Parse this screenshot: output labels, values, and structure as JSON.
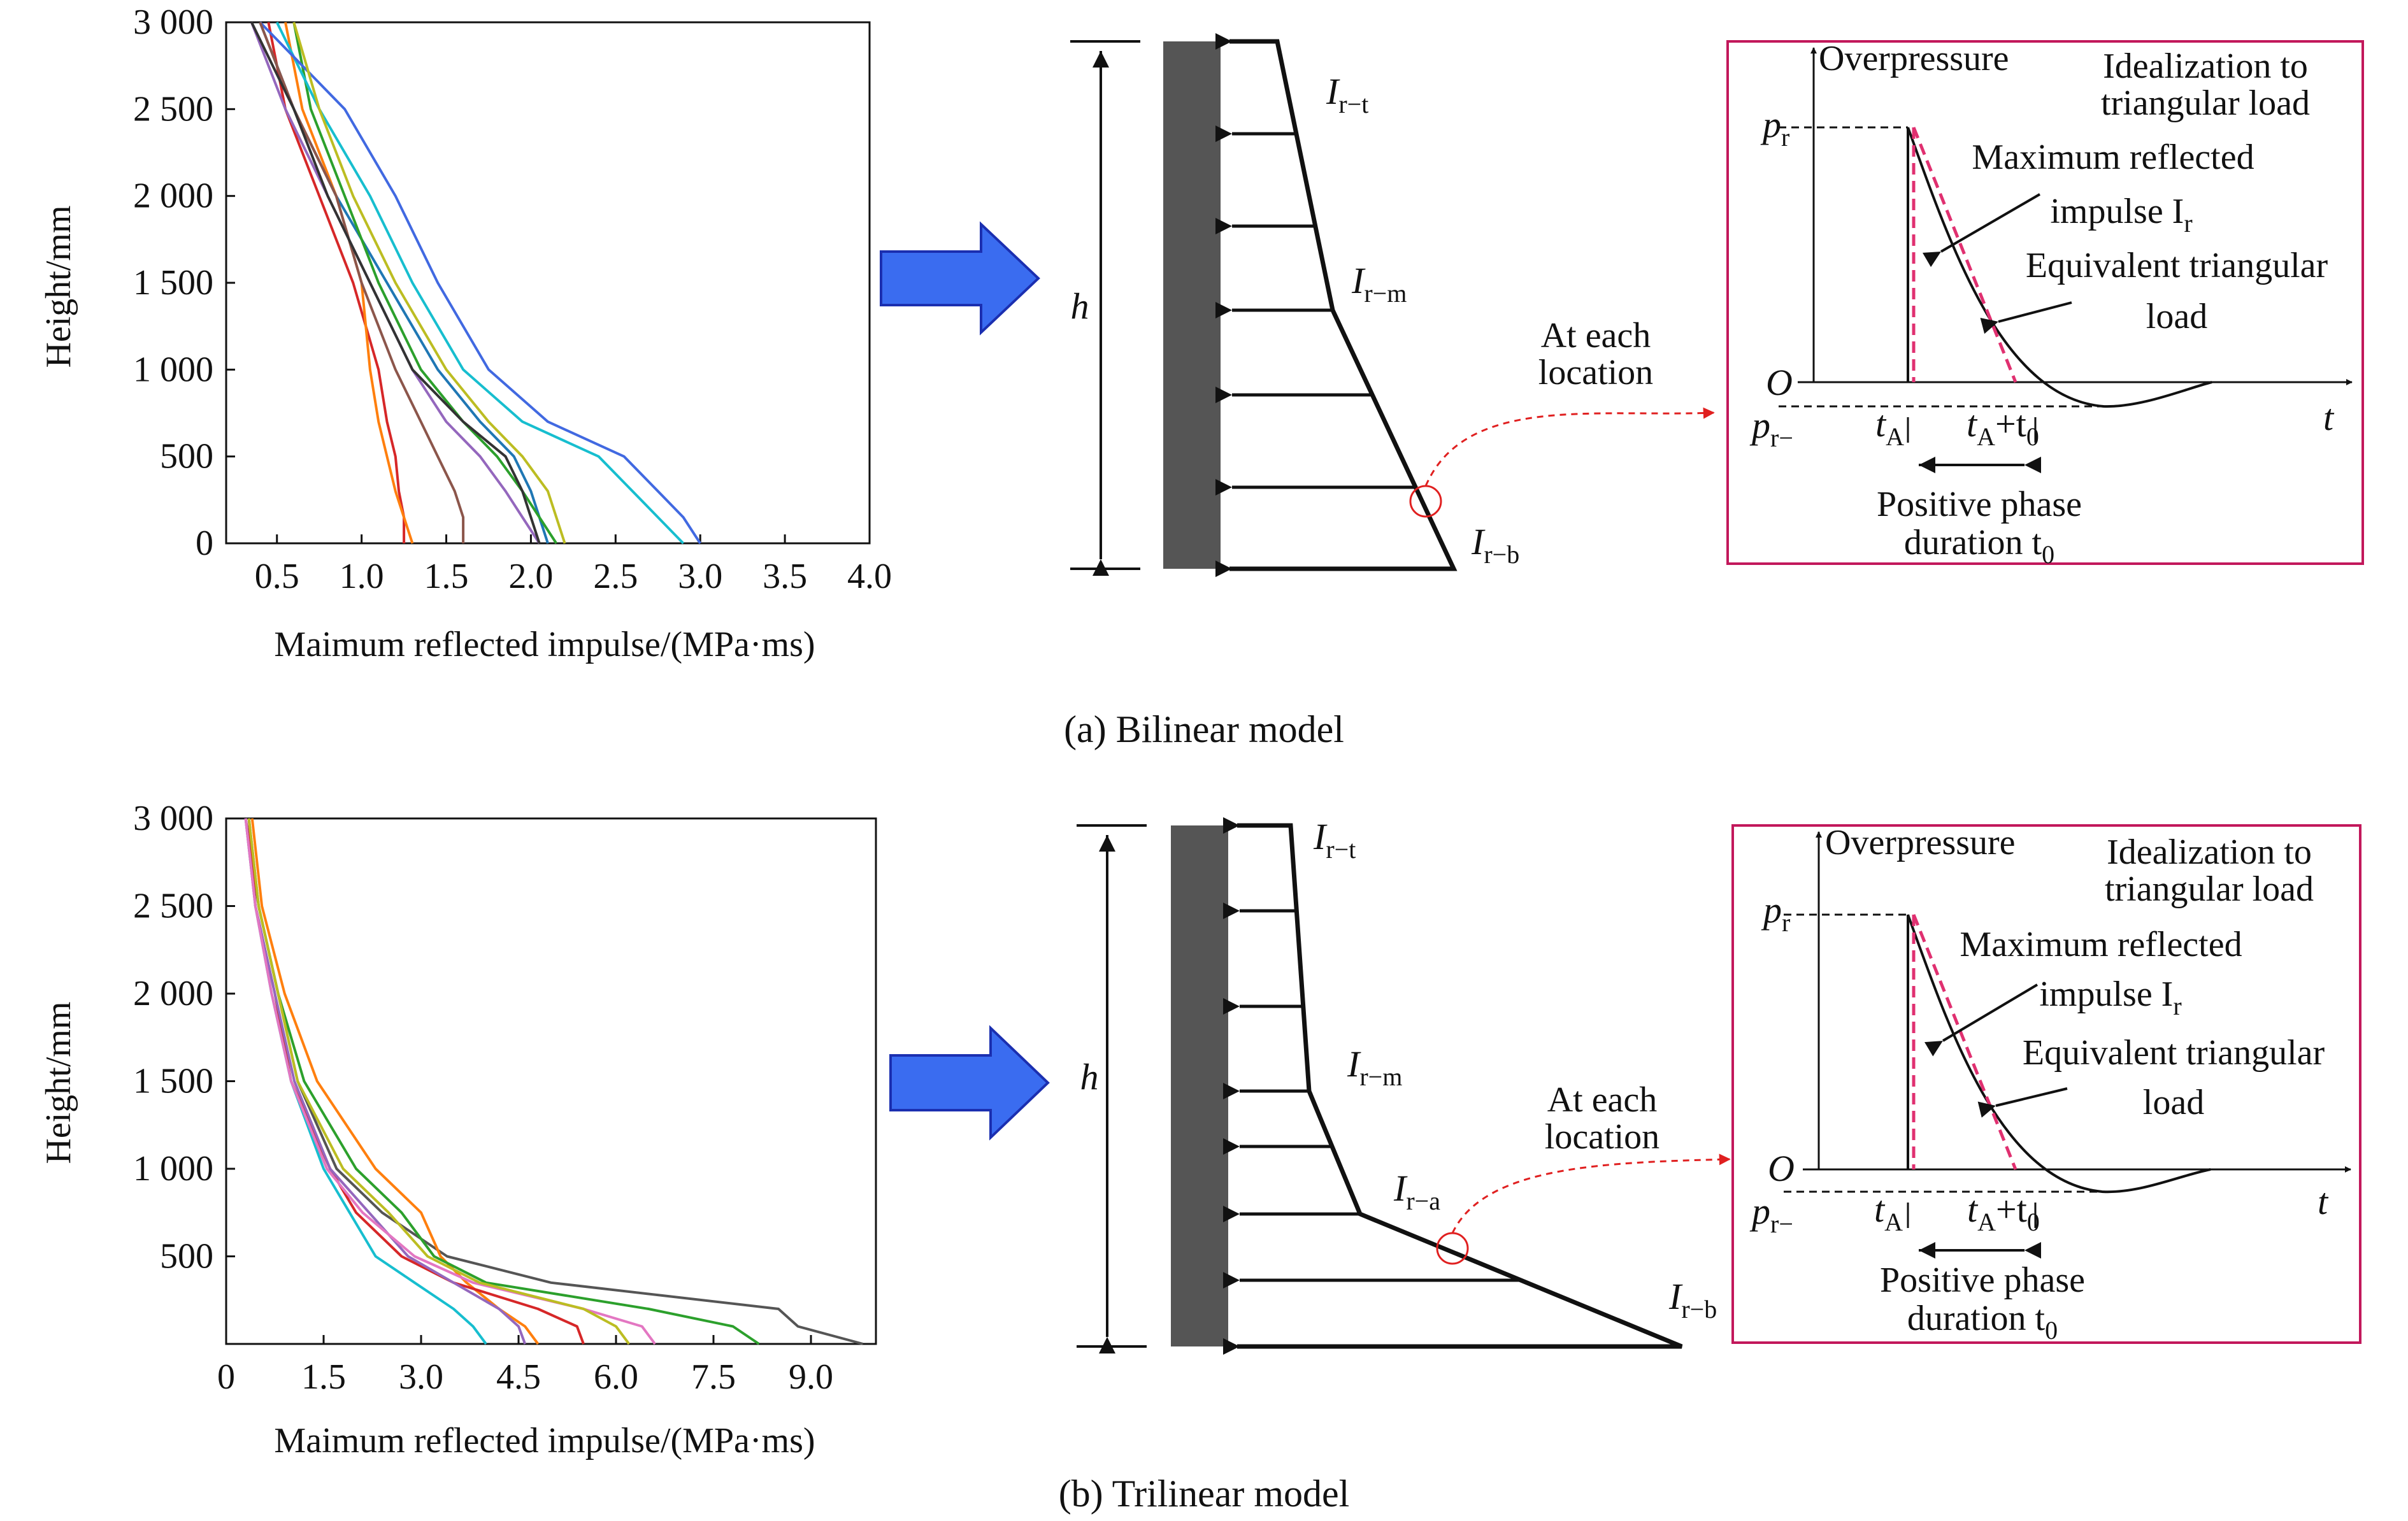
{
  "captions": {
    "a": "(a) Bilinear model",
    "b": "(b) Trilinear model"
  },
  "colors": {
    "arrow_fill": "#3a6cf0",
    "arrow_stroke": "#1b2fb0",
    "wall": "#555555",
    "frame": "#c2185b",
    "equiv_dash": "#e03070",
    "connector": "#e02020"
  },
  "charts": {
    "a": {
      "ylabel": "Height/mm",
      "xlabel": "Maimum reflected impulse/(MPa·ms)",
      "yticks": [
        "3 000",
        "2 500",
        "2 000",
        "1 500",
        "1 000",
        "500",
        "0"
      ],
      "xticks": [
        "0.5",
        "1.0",
        "1.5",
        "2.0",
        "2.5",
        "3.0",
        "3.5",
        "4.0"
      ]
    },
    "b": {
      "ylabel": "Height/mm",
      "xlabel": "Maimum reflected impulse/(MPa·ms)",
      "yticks": [
        "3 000",
        "2 500",
        "2 000",
        "1 500",
        "1 000",
        "500"
      ],
      "xticks": [
        "0",
        "1.5",
        "3.0",
        "4.5",
        "6.0",
        "7.5",
        "9.0"
      ]
    }
  },
  "chart_data": [
    {
      "type": "line",
      "title": "",
      "xlabel": "Maimum reflected impulse/(MPa·ms)",
      "ylabel": "Height/mm",
      "xlim": [
        0.2,
        4.0
      ],
      "ylim": [
        0,
        3000
      ],
      "x_ticks": [
        0.5,
        1.0,
        1.5,
        2.0,
        2.5,
        3.0,
        3.5,
        4.0
      ],
      "y_ticks": [
        0,
        500,
        1000,
        1500,
        2000,
        2500,
        3000
      ],
      "grid": false,
      "y": [
        3000,
        2500,
        2000,
        1500,
        1000,
        700,
        500,
        300,
        150,
        0
      ],
      "series": [
        {
          "color": "#d62728",
          "values": [
            0.45,
            0.55,
            0.75,
            0.95,
            1.1,
            1.15,
            1.2,
            1.22,
            1.25,
            1.25
          ]
        },
        {
          "color": "#ff7f0e",
          "values": [
            0.55,
            0.65,
            0.85,
            1.0,
            1.05,
            1.1,
            1.15,
            1.2,
            1.25,
            1.3
          ]
        },
        {
          "color": "#1f77b4",
          "values": [
            0.4,
            0.6,
            0.85,
            1.15,
            1.45,
            1.7,
            1.9,
            2.0,
            2.05,
            2.1
          ]
        },
        {
          "color": "#2ca02c",
          "values": [
            0.6,
            0.7,
            0.9,
            1.1,
            1.35,
            1.6,
            1.8,
            1.95,
            2.05,
            2.15
          ]
        },
        {
          "color": "#17becf",
          "values": [
            0.5,
            0.75,
            1.05,
            1.3,
            1.6,
            1.95,
            2.4,
            2.6,
            2.75,
            2.9
          ]
        },
        {
          "color": "#4169e1",
          "values": [
            0.4,
            0.9,
            1.2,
            1.45,
            1.75,
            2.1,
            2.55,
            2.75,
            2.9,
            3.0
          ]
        },
        {
          "color": "#8c564b",
          "values": [
            0.4,
            0.6,
            0.85,
            1.0,
            1.2,
            1.35,
            1.45,
            1.55,
            1.6,
            1.6
          ]
        },
        {
          "color": "#9467bd",
          "values": [
            0.35,
            0.55,
            0.8,
            1.05,
            1.3,
            1.5,
            1.7,
            1.85,
            1.95,
            2.05
          ]
        },
        {
          "color": "#bcbd22",
          "values": [
            0.6,
            0.75,
            0.95,
            1.2,
            1.5,
            1.75,
            1.95,
            2.1,
            2.15,
            2.2
          ]
        },
        {
          "color": "#333333",
          "values": [
            0.35,
            0.6,
            0.8,
            1.05,
            1.3,
            1.6,
            1.85,
            1.95,
            2.0,
            2.05
          ]
        }
      ]
    },
    {
      "type": "line",
      "title": "",
      "xlabel": "Maimum reflected impulse/(MPa·ms)",
      "ylabel": "Height/mm",
      "xlim": [
        0,
        10
      ],
      "ylim": [
        0,
        3000
      ],
      "x_ticks": [
        0,
        1.5,
        3.0,
        4.5,
        6.0,
        7.5,
        9.0
      ],
      "y_ticks": [
        500,
        1000,
        1500,
        2000,
        2500,
        3000
      ],
      "grid": false,
      "y": [
        3000,
        2500,
        2000,
        1500,
        1000,
        750,
        500,
        350,
        200,
        100,
        0
      ],
      "series": [
        {
          "color": "#555555",
          "values": [
            0.3,
            0.5,
            0.8,
            1.1,
            1.7,
            2.4,
            3.4,
            5.0,
            8.5,
            8.8,
            9.8
          ]
        },
        {
          "color": "#ff7f0e",
          "values": [
            0.4,
            0.55,
            0.9,
            1.4,
            2.3,
            3.0,
            3.3,
            3.7,
            4.2,
            4.6,
            4.8
          ]
        },
        {
          "color": "#2ca02c",
          "values": [
            0.35,
            0.5,
            0.8,
            1.2,
            2.0,
            2.7,
            3.2,
            4.0,
            6.5,
            7.8,
            8.2
          ]
        },
        {
          "color": "#d62728",
          "values": [
            0.35,
            0.45,
            0.75,
            1.0,
            1.6,
            2.0,
            2.7,
            3.5,
            4.8,
            5.4,
            5.5
          ]
        },
        {
          "color": "#17becf",
          "values": [
            0.3,
            0.45,
            0.7,
            1.0,
            1.5,
            1.9,
            2.3,
            2.9,
            3.5,
            3.8,
            4.0
          ]
        },
        {
          "color": "#9467bd",
          "values": [
            0.3,
            0.45,
            0.75,
            1.05,
            1.6,
            2.2,
            2.8,
            3.5,
            4.2,
            4.5,
            4.6
          ]
        },
        {
          "color": "#e377c2",
          "values": [
            0.3,
            0.45,
            0.7,
            1.0,
            1.55,
            2.1,
            2.9,
            3.8,
            5.5,
            6.4,
            6.6
          ]
        },
        {
          "color": "#bcbd22",
          "values": [
            0.35,
            0.5,
            0.8,
            1.1,
            1.8,
            2.5,
            3.1,
            3.9,
            5.5,
            6.0,
            6.2
          ]
        }
      ]
    }
  ],
  "models": {
    "a": {
      "h": "h",
      "labels": [
        {
          "main": "I",
          "sub": "r−t"
        },
        {
          "main": "I",
          "sub": "r−m"
        },
        {
          "main": "I",
          "sub": "r−b"
        }
      ],
      "at_each": [
        "At each",
        "location"
      ]
    },
    "b": {
      "h": "h",
      "labels": [
        {
          "main": "I",
          "sub": "r−t"
        },
        {
          "main": "I",
          "sub": "r−m"
        },
        {
          "main": "I",
          "sub": "r−a"
        },
        {
          "main": "I",
          "sub": "r−b"
        }
      ],
      "at_each": [
        "At each",
        "location"
      ]
    }
  },
  "inset": {
    "overpressure": "Overpressure",
    "idealization": [
      "Idealization to",
      "triangular load"
    ],
    "max_impulse": [
      "Maximum reflected",
      "impulse I"
    ],
    "max_impulse_sub": "r",
    "equiv": [
      "Equivalent triangular",
      "load"
    ],
    "O": "O",
    "t": "t",
    "pr": "p",
    "pr_sub": "r",
    "prm": "p",
    "prm_sub": "r−",
    "tA": "t",
    "tA_sub": "A",
    "tA_t0": "t",
    "tA_t0_sub": "A",
    "plus": "+t",
    "t0_sub": "0",
    "duration": [
      "Positive phase",
      "duration t"
    ],
    "duration_sub": "0"
  }
}
